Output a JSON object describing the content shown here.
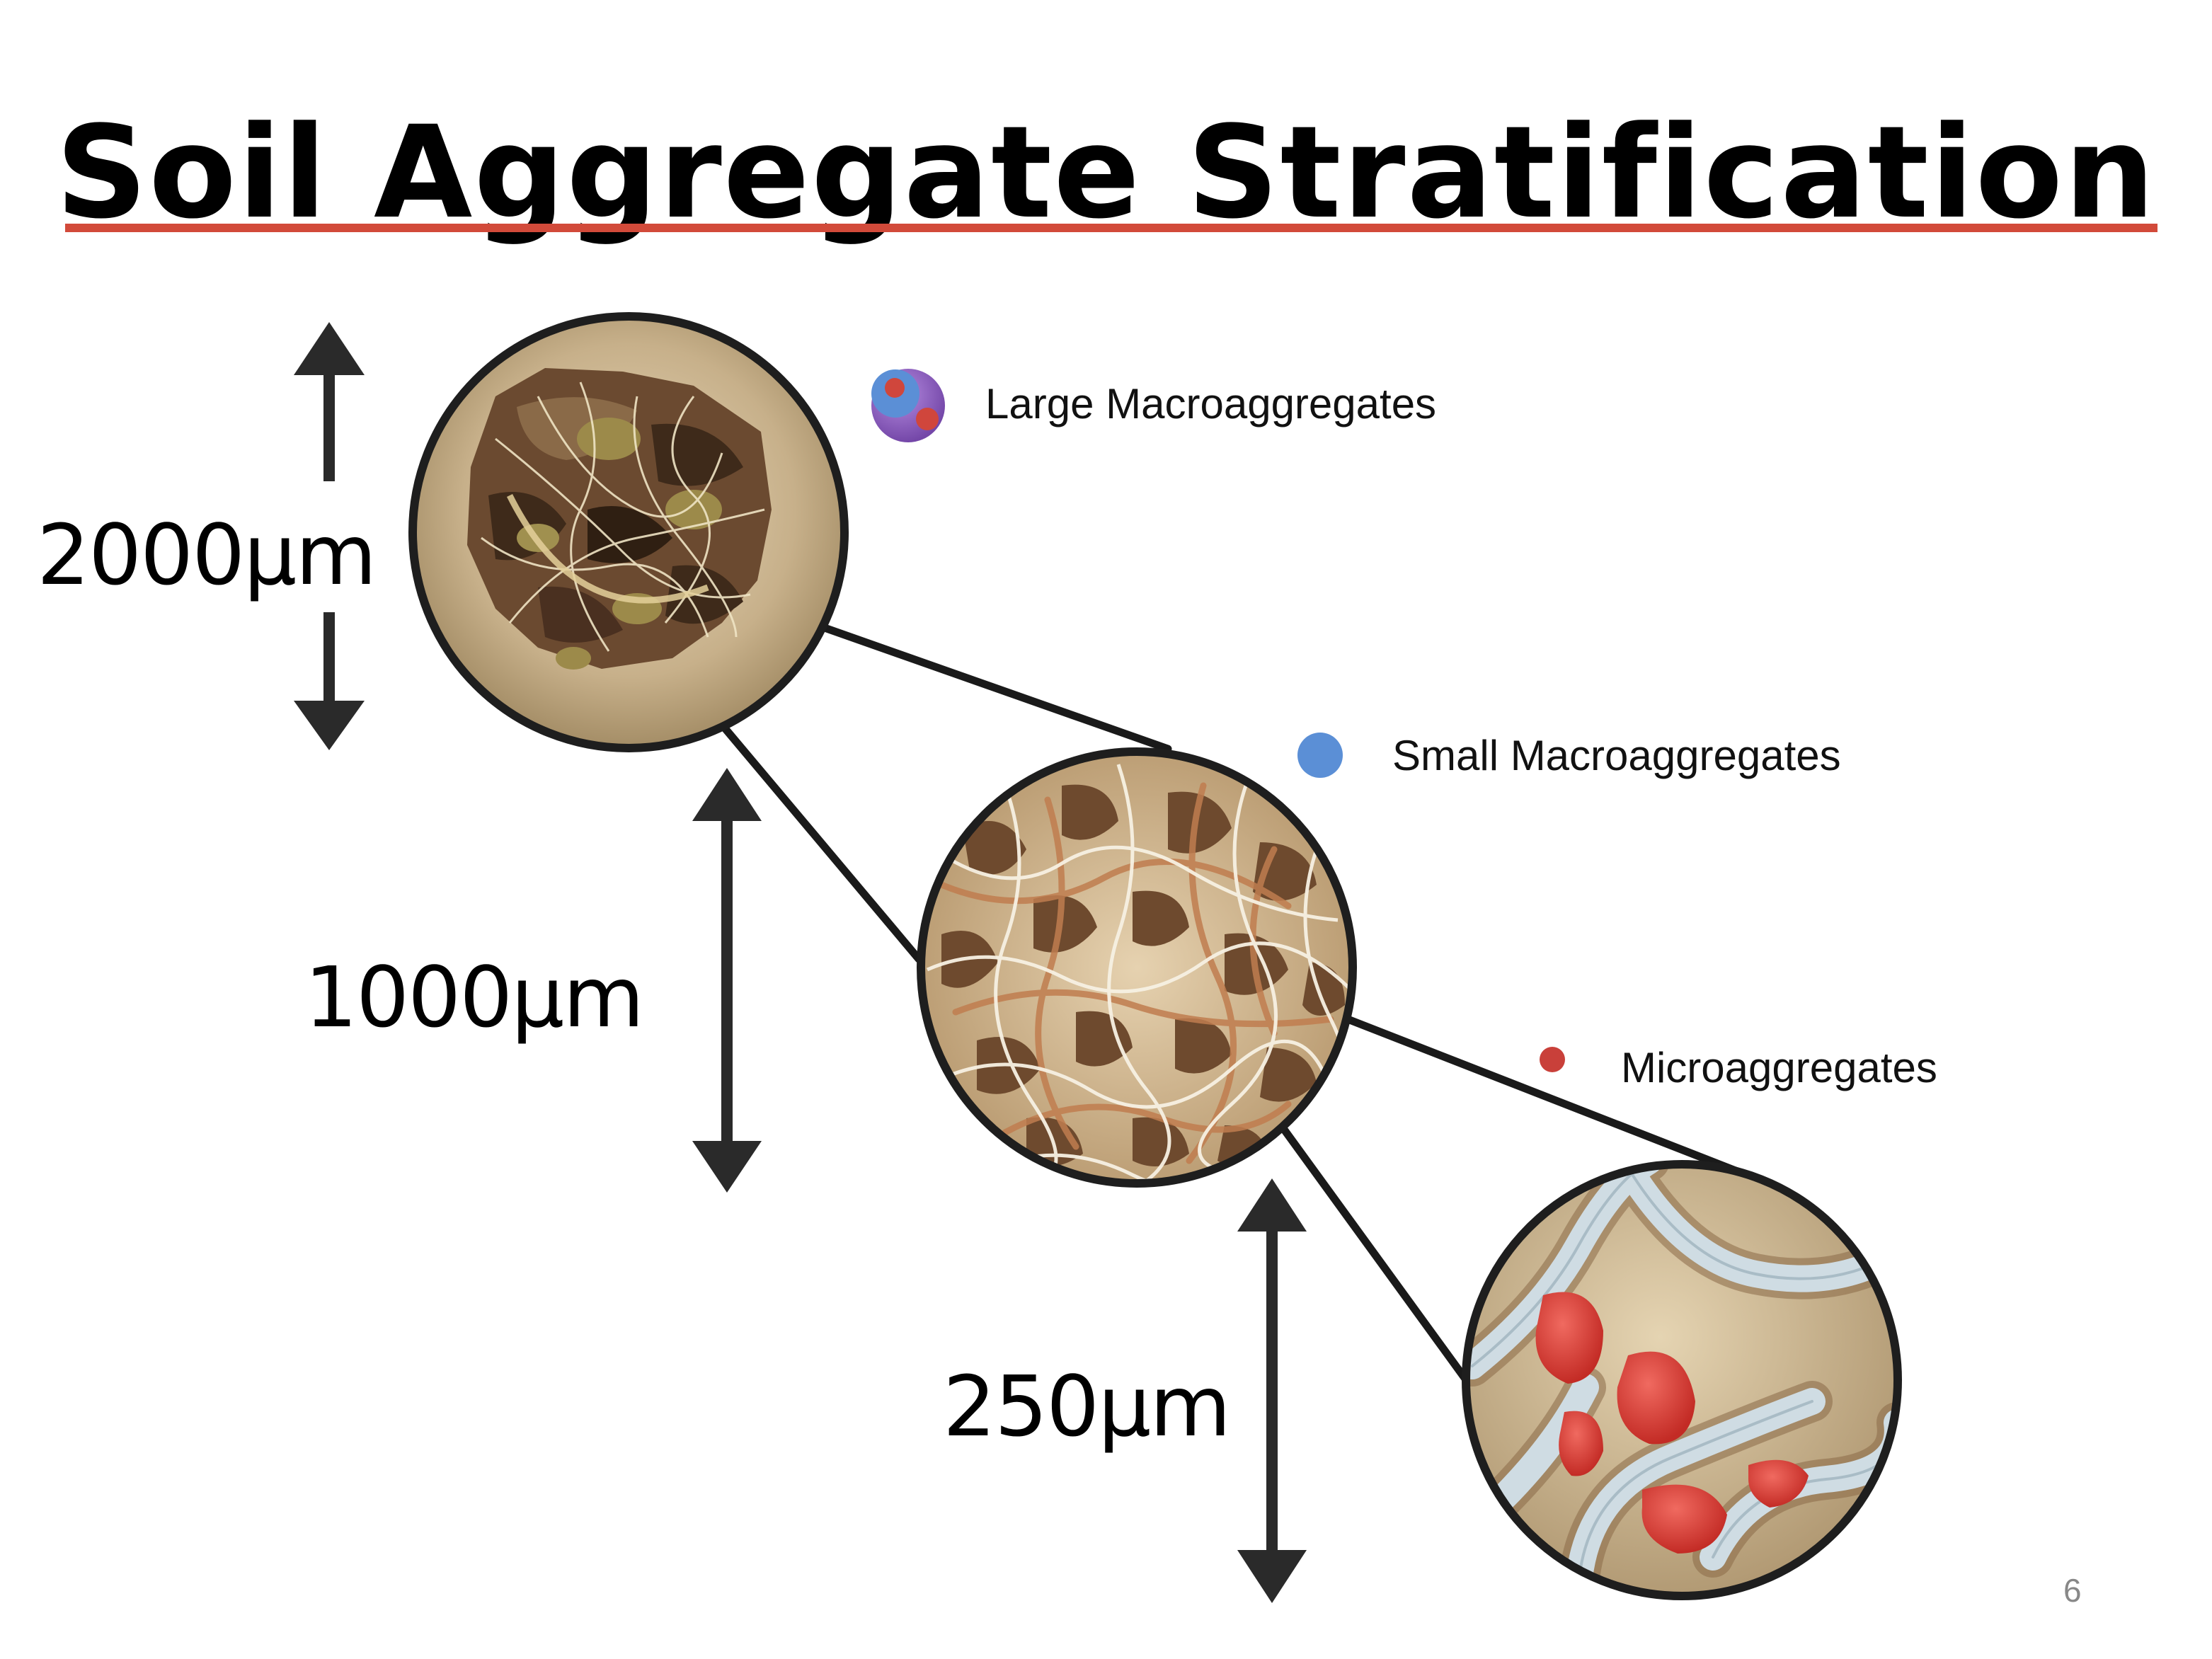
{
  "slide": {
    "title": "Soil Aggregate Stratification",
    "page_number": "6"
  },
  "scales": [
    {
      "label": "2000µm"
    },
    {
      "label": "1000µm"
    },
    {
      "label": "250µm"
    }
  ],
  "legend": [
    {
      "label": "Large Macroaggregates",
      "icon": "large-macroaggregate-icon",
      "colors": [
        "#8e5fb8",
        "#5b8fd6",
        "#d0463c"
      ]
    },
    {
      "label": "Small Macroaggregates",
      "icon": "small-macroaggregate-icon",
      "colors": [
        "#5b8fd6"
      ]
    },
    {
      "label": "Microaggregates",
      "icon": "microaggregate-icon",
      "colors": [
        "#c9403a"
      ]
    }
  ],
  "colors": {
    "title_rule": "#d24a3a",
    "soil_base": "#c2ad86",
    "soil_dark": "#5a3a24",
    "hyphae": "#f4ead2",
    "micro_red": "#d83a32",
    "micro_strand": "#c9d8e0"
  }
}
